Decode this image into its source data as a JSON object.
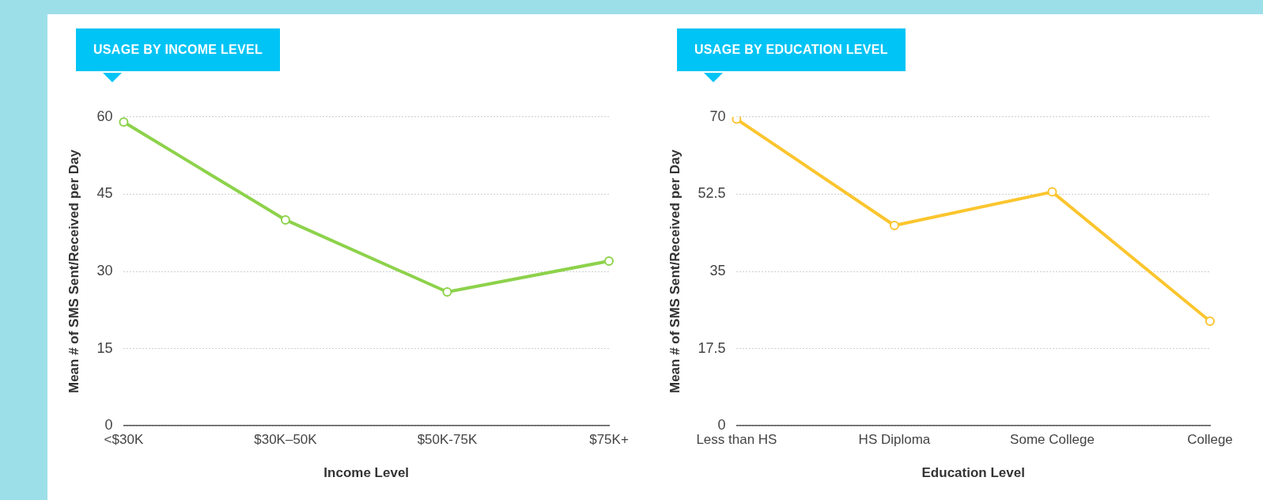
{
  "chart_data": [
    {
      "type": "line",
      "title": "USAGE BY INCOME LEVEL",
      "xlabel": "Income Level",
      "ylabel": "Mean # of SMS Sent/Received per Day",
      "categories": [
        "<$30K",
        "$30K–50K",
        "$50K-75K",
        "$75K+"
      ],
      "series": [
        {
          "color": "#8dd24b",
          "values": [
            59,
            40,
            26,
            32
          ]
        }
      ],
      "ylim": [
        0,
        60
      ],
      "yticks": [
        0,
        15,
        30,
        45,
        60
      ],
      "grid": "y",
      "legend": false,
      "marker": "circle",
      "line_style": "solid"
    },
    {
      "type": "line",
      "title": "USAGE BY EDUCATION LEVEL",
      "xlabel": "Education Level",
      "ylabel": "Mean # of SMS Sent/Received per Day",
      "categories": [
        "Less than HS",
        "HS Diploma",
        "Some College",
        "College"
      ],
      "series": [
        {
          "color": "#fbc52d",
          "values": [
            69.5,
            45.4,
            53,
            23.7
          ]
        }
      ],
      "ylim": [
        0,
        70
      ],
      "yticks": [
        0,
        17.5,
        35,
        52.5,
        70
      ],
      "grid": "y",
      "legend": false,
      "marker": "circle",
      "line_style": "solid"
    }
  ]
}
